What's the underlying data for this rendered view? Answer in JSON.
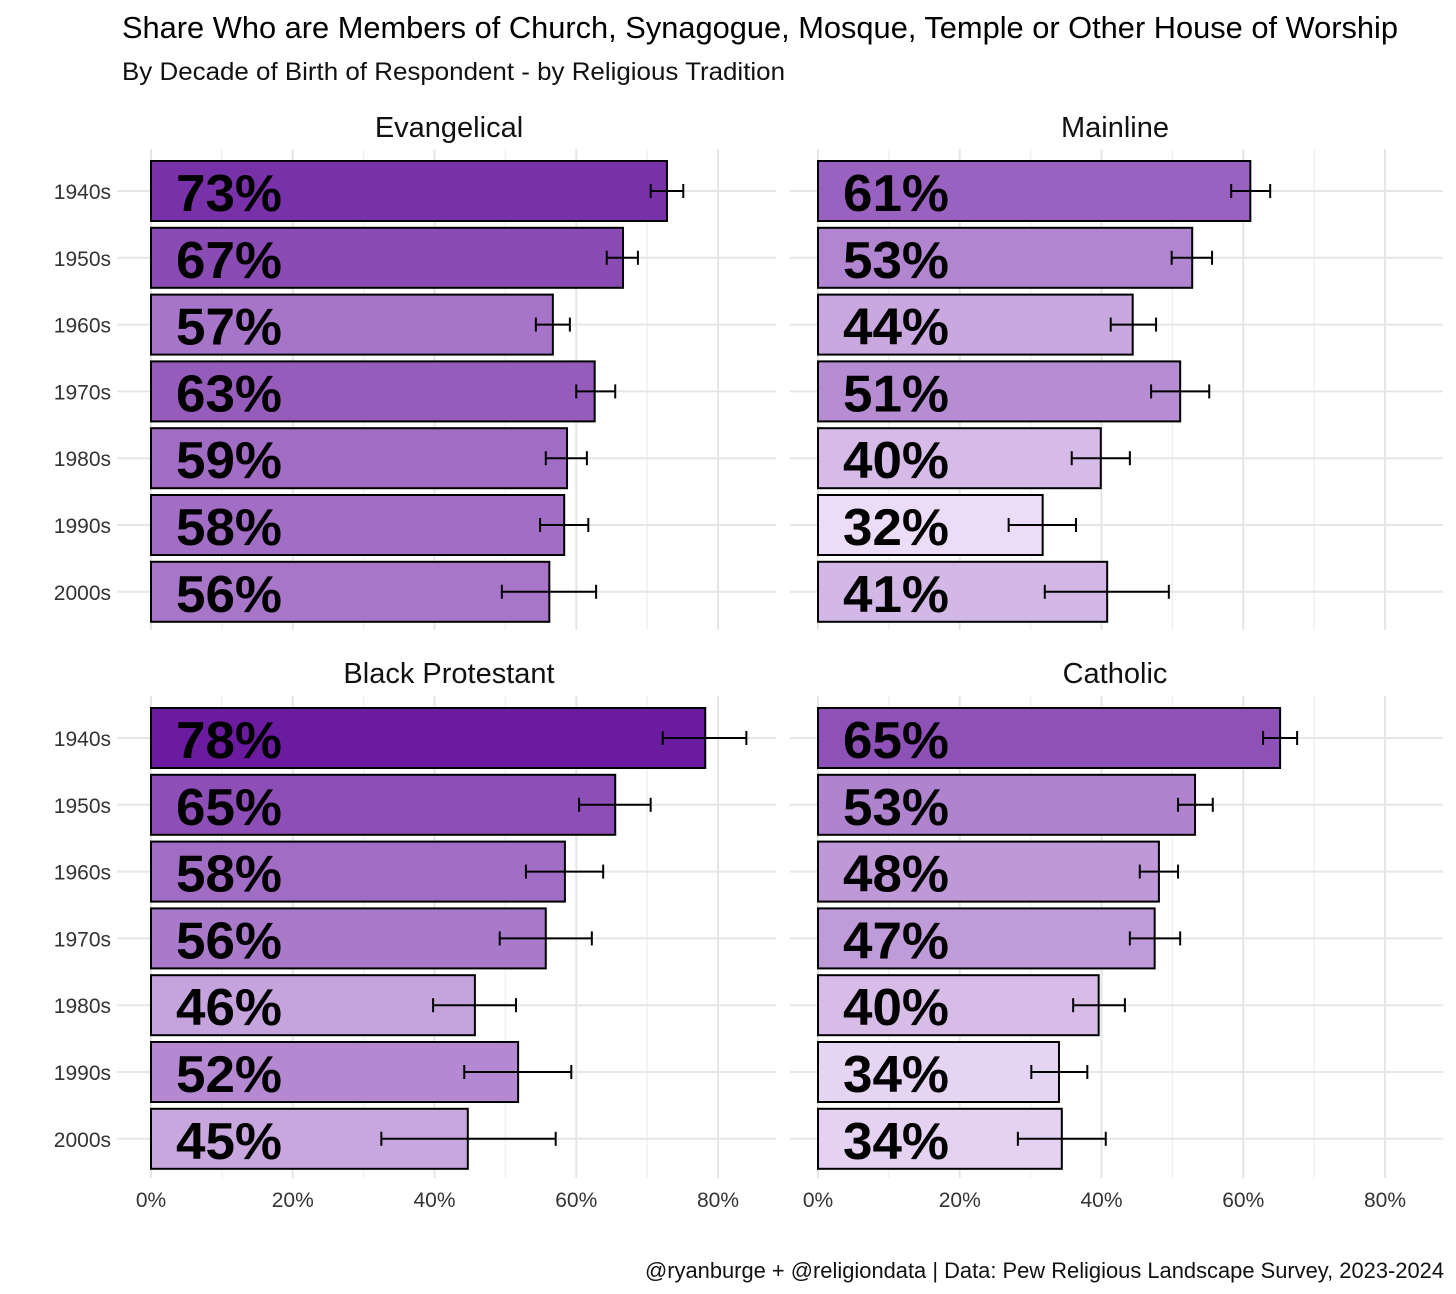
{
  "chart_data": {
    "type": "bar",
    "orientation": "horizontal",
    "title": "Share Who are Members of Church, Synagogue, Mosque, Temple or Other House of Worship",
    "subtitle": "By Decade of Birth of Respondent - by Religious Tradition",
    "caption": "@ryanburge + @religiondata | Data: Pew Religious Landscape Survey, 2023-2024",
    "categories": [
      "1940s",
      "1950s",
      "1960s",
      "1970s",
      "1980s",
      "1990s",
      "2000s"
    ],
    "xlim": [
      0,
      80
    ],
    "x_ticks": [
      "0%",
      "20%",
      "40%",
      "60%",
      "80%"
    ],
    "grid": true,
    "color_scale": {
      "low": "#ecdcf7",
      "high": "#6a1b9f",
      "low_value": 32,
      "high_value": 78
    },
    "panels": [
      {
        "name": "Evangelical",
        "values": [
          72.8,
          66.6,
          56.7,
          62.6,
          58.7,
          58.3,
          56.2
        ],
        "labels": [
          "73%",
          "67%",
          "57%",
          "63%",
          "59%",
          "58%",
          "56%"
        ],
        "ci_low": [
          70.5,
          64.3,
          54.3,
          60.0,
          55.7,
          54.9,
          49.5
        ],
        "ci_high": [
          75.1,
          68.7,
          59.1,
          65.5,
          61.5,
          61.7,
          62.8
        ]
      },
      {
        "name": "Mainline",
        "values": [
          61.0,
          52.8,
          44.4,
          51.1,
          39.9,
          31.7,
          40.8
        ],
        "labels": [
          "61%",
          "53%",
          "44%",
          "51%",
          "40%",
          "32%",
          "41%"
        ],
        "ci_low": [
          58.3,
          49.9,
          41.3,
          47.0,
          35.8,
          26.9,
          32.0
        ],
        "ci_high": [
          63.8,
          55.6,
          47.7,
          55.2,
          44.0,
          36.4,
          49.5
        ]
      },
      {
        "name": "Black Protestant",
        "values": [
          78.2,
          65.5,
          58.4,
          55.7,
          45.7,
          51.8,
          44.7
        ],
        "labels": [
          "78%",
          "65%",
          "58%",
          "56%",
          "46%",
          "52%",
          "45%"
        ],
        "ci_low": [
          72.2,
          60.4,
          52.9,
          49.2,
          39.8,
          44.2,
          32.5
        ],
        "ci_high": [
          84.0,
          70.5,
          63.8,
          62.2,
          51.5,
          59.3,
          57.1
        ]
      },
      {
        "name": "Catholic",
        "values": [
          65.2,
          53.2,
          48.1,
          47.5,
          39.6,
          34.0,
          34.4
        ],
        "labels": [
          "65%",
          "53%",
          "48%",
          "47%",
          "40%",
          "34%",
          "34%"
        ],
        "ci_low": [
          62.8,
          50.8,
          45.4,
          44.0,
          36.0,
          30.1,
          28.2
        ],
        "ci_high": [
          67.6,
          55.7,
          50.8,
          51.1,
          43.3,
          38.0,
          40.6
        ]
      }
    ]
  }
}
